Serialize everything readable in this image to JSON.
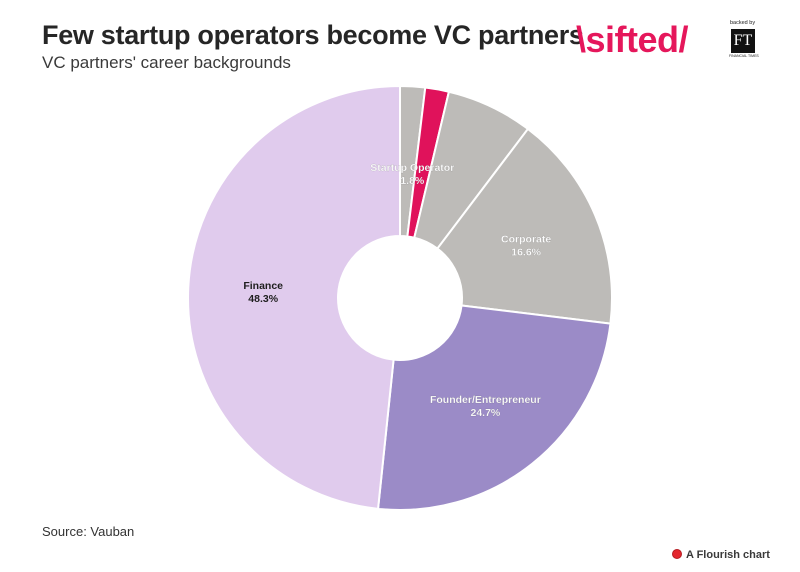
{
  "header": {
    "title": "Few startup operators become VC partners",
    "subtitle": "VC partners' career backgrounds"
  },
  "brand": {
    "wordmark": "\\sifted/",
    "backed_by": "backed by",
    "ft_mark": "FT",
    "ft_name": "FINANCIAL TIMES"
  },
  "chart_data": {
    "type": "pie",
    "variant": "donut",
    "title": "Few startup operators become VC partners",
    "subtitle": "VC partners' career backgrounds",
    "start": "12 o'clock, clockwise",
    "slices": [
      {
        "label": "",
        "value": 1.9,
        "color": "#bdbbb8",
        "show_label": false
      },
      {
        "label": "Startup Operator",
        "value": 1.8,
        "color": "#e0125b",
        "show_label": true
      },
      {
        "label": "",
        "value": 6.6,
        "color": "#bdbbb8",
        "show_label": false
      },
      {
        "label": "Corporate",
        "value": 16.6,
        "color": "#bdbbb8",
        "show_label": true
      },
      {
        "label": "Founder/Entrepreneur",
        "value": 24.7,
        "color": "#9b8bc7",
        "show_label": true
      },
      {
        "label": "Finance",
        "value": 48.3,
        "color": "#e0cbed",
        "show_label": true
      }
    ],
    "value_suffix": "%",
    "source": "Source: Vauban"
  },
  "footer": {
    "source": "Source: Vauban",
    "credit": "A Flourish chart"
  }
}
